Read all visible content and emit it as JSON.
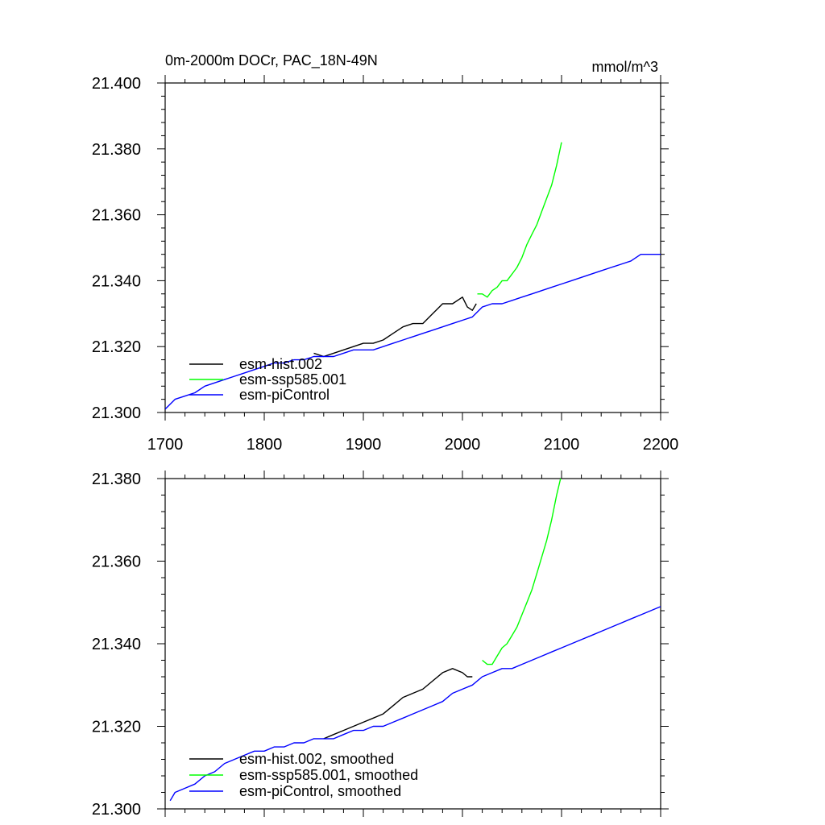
{
  "chart_data": [
    {
      "type": "line",
      "title": "0m-2000m DOCr, PAC_18N-49N",
      "units": "mmol/m^3",
      "xlim": [
        1700,
        2200
      ],
      "ylim": [
        21.3,
        21.4
      ],
      "xticks": [
        1700,
        1800,
        1900,
        2000,
        2100,
        2200
      ],
      "xtick_labels": [
        "1700",
        "1800",
        "1900",
        "2000",
        "2100",
        "2200"
      ],
      "yticks": [
        21.3,
        21.32,
        21.34,
        21.36,
        21.38,
        21.4
      ],
      "ytick_labels": [
        "21.300",
        "21.320",
        "21.340",
        "21.360",
        "21.380",
        "21.400"
      ],
      "legend_position": "lower-left",
      "series": [
        {
          "name": "esm-hist.002",
          "color": "#000000",
          "x": [
            1850,
            1860,
            1870,
            1880,
            1890,
            1900,
            1910,
            1920,
            1930,
            1940,
            1950,
            1960,
            1970,
            1980,
            1990,
            2000,
            2005,
            2010,
            2014
          ],
          "y": [
            21.318,
            21.317,
            21.318,
            21.319,
            21.32,
            21.321,
            21.321,
            21.322,
            21.324,
            21.326,
            21.327,
            21.327,
            21.33,
            21.333,
            21.333,
            21.335,
            21.332,
            21.331,
            21.333
          ]
        },
        {
          "name": "esm-ssp585.001",
          "color": "#00ff00",
          "x": [
            2015,
            2020,
            2025,
            2030,
            2035,
            2040,
            2045,
            2050,
            2055,
            2060,
            2065,
            2070,
            2075,
            2080,
            2085,
            2090,
            2095,
            2100
          ],
          "y": [
            21.336,
            21.336,
            21.335,
            21.337,
            21.338,
            21.34,
            21.34,
            21.342,
            21.344,
            21.347,
            21.351,
            21.354,
            21.357,
            21.361,
            21.365,
            21.369,
            21.375,
            21.382
          ]
        },
        {
          "name": "esm-piControl",
          "color": "#0000ff",
          "x": [
            1700,
            1710,
            1720,
            1730,
            1740,
            1750,
            1760,
            1770,
            1780,
            1790,
            1800,
            1810,
            1820,
            1830,
            1840,
            1850,
            1860,
            1870,
            1880,
            1890,
            1900,
            1910,
            1920,
            1930,
            1940,
            1950,
            1960,
            1970,
            1980,
            1990,
            2000,
            2010,
            2020,
            2030,
            2040,
            2050,
            2060,
            2070,
            2080,
            2090,
            2100,
            2110,
            2120,
            2130,
            2140,
            2150,
            2160,
            2170,
            2180,
            2190,
            2200
          ],
          "y": [
            21.301,
            21.304,
            21.305,
            21.306,
            21.308,
            21.309,
            21.31,
            21.311,
            21.312,
            21.313,
            21.314,
            21.315,
            21.315,
            21.316,
            21.316,
            21.317,
            21.317,
            21.317,
            21.318,
            21.319,
            21.319,
            21.319,
            21.32,
            21.321,
            21.322,
            21.323,
            21.324,
            21.325,
            21.326,
            21.327,
            21.328,
            21.329,
            21.332,
            21.333,
            21.333,
            21.334,
            21.335,
            21.336,
            21.337,
            21.338,
            21.339,
            21.34,
            21.341,
            21.342,
            21.343,
            21.344,
            21.345,
            21.346,
            21.348,
            21.348,
            21.348
          ]
        }
      ]
    },
    {
      "type": "line",
      "title": "",
      "xlim": [
        1700,
        2200
      ],
      "ylim": [
        21.3,
        21.38
      ],
      "xticks": [
        1700,
        1800,
        1900,
        2000,
        2100,
        2200
      ],
      "yticks": [
        21.3,
        21.32,
        21.34,
        21.36,
        21.38
      ],
      "ytick_labels": [
        "21.300",
        "21.320",
        "21.340",
        "21.360",
        "21.380"
      ],
      "legend_position": "lower-left",
      "series": [
        {
          "name": "esm-hist.002, smoothed",
          "color": "#000000",
          "x": [
            1860,
            1870,
            1880,
            1890,
            1900,
            1910,
            1920,
            1930,
            1940,
            1950,
            1960,
            1970,
            1980,
            1990,
            2000,
            2005,
            2010
          ],
          "y": [
            21.317,
            21.318,
            21.319,
            21.32,
            21.321,
            21.322,
            21.323,
            21.325,
            21.327,
            21.328,
            21.329,
            21.331,
            21.333,
            21.334,
            21.333,
            21.332,
            21.332
          ]
        },
        {
          "name": "esm-ssp585.001, smoothed",
          "color": "#00ff00",
          "x": [
            2020,
            2025,
            2030,
            2035,
            2040,
            2045,
            2050,
            2055,
            2060,
            2065,
            2070,
            2075,
            2080,
            2085,
            2090,
            2095,
            2100
          ],
          "y": [
            21.336,
            21.335,
            21.335,
            21.337,
            21.339,
            21.34,
            21.342,
            21.344,
            21.347,
            21.35,
            21.353,
            21.357,
            21.361,
            21.365,
            21.37,
            21.376,
            21.381
          ]
        },
        {
          "name": "esm-piControl, smoothed",
          "color": "#0000ff",
          "x": [
            1705,
            1710,
            1720,
            1730,
            1740,
            1750,
            1760,
            1770,
            1780,
            1790,
            1800,
            1810,
            1820,
            1830,
            1840,
            1850,
            1860,
            1870,
            1880,
            1890,
            1900,
            1910,
            1920,
            1930,
            1940,
            1950,
            1960,
            1970,
            1980,
            1990,
            2000,
            2010,
            2020,
            2030,
            2040,
            2050,
            2060,
            2070,
            2080,
            2090,
            2100,
            2110,
            2120,
            2130,
            2140,
            2150,
            2160,
            2170,
            2180,
            2190,
            2200
          ],
          "y": [
            21.302,
            21.304,
            21.305,
            21.306,
            21.308,
            21.309,
            21.311,
            21.312,
            21.313,
            21.314,
            21.314,
            21.315,
            21.315,
            21.316,
            21.316,
            21.317,
            21.317,
            21.317,
            21.318,
            21.319,
            21.319,
            21.32,
            21.32,
            21.321,
            21.322,
            21.323,
            21.324,
            21.325,
            21.326,
            21.328,
            21.329,
            21.33,
            21.332,
            21.333,
            21.334,
            21.334,
            21.335,
            21.336,
            21.337,
            21.338,
            21.339,
            21.34,
            21.341,
            21.342,
            21.343,
            21.344,
            21.345,
            21.346,
            21.347,
            21.348,
            21.349
          ]
        }
      ]
    }
  ]
}
